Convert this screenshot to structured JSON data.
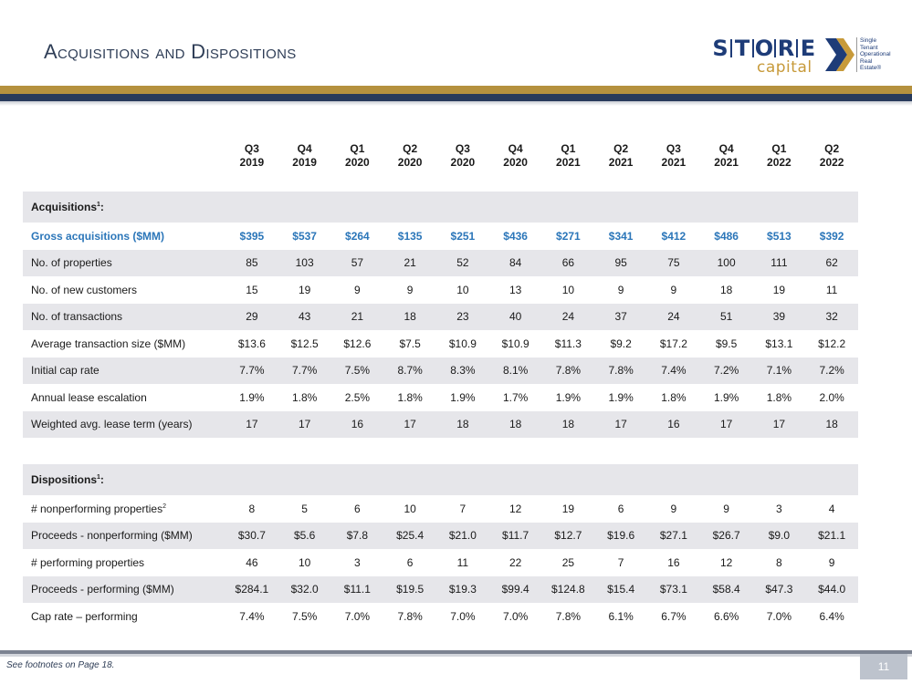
{
  "title": "Acquisitions and Dispositions",
  "logo": {
    "letters": [
      "S",
      "T",
      "O",
      "R",
      "E"
    ],
    "sub": "capital",
    "tagline": [
      "Single",
      "Tenant",
      "Operational",
      "Real",
      "Estate®"
    ]
  },
  "columns": [
    {
      "q": "Q3",
      "y": "2019"
    },
    {
      "q": "Q4",
      "y": "2019"
    },
    {
      "q": "Q1",
      "y": "2020"
    },
    {
      "q": "Q2",
      "y": "2020"
    },
    {
      "q": "Q3",
      "y": "2020"
    },
    {
      "q": "Q4",
      "y": "2020"
    },
    {
      "q": "Q1",
      "y": "2021"
    },
    {
      "q": "Q2",
      "y": "2021"
    },
    {
      "q": "Q3",
      "y": "2021"
    },
    {
      "q": "Q4",
      "y": "2021"
    },
    {
      "q": "Q1",
      "y": "2022"
    },
    {
      "q": "Q2",
      "y": "2022"
    }
  ],
  "acquisitions": {
    "heading": "Acquisitions",
    "heading_sup": "1",
    "rows": [
      {
        "label": "Gross acquisitions ($MM)",
        "values": [
          "$395",
          "$537",
          "$264",
          "$135",
          "$251",
          "$436",
          "$271",
          "$341",
          "$412",
          "$486",
          "$513",
          "$392"
        ]
      },
      {
        "label": "No. of properties",
        "values": [
          "85",
          "103",
          "57",
          "21",
          "52",
          "84",
          "66",
          "95",
          "75",
          "100",
          "111",
          "62"
        ]
      },
      {
        "label": "No. of new customers",
        "values": [
          "15",
          "19",
          "9",
          "9",
          "10",
          "13",
          "10",
          "9",
          "9",
          "18",
          "19",
          "11"
        ]
      },
      {
        "label": "No. of transactions",
        "values": [
          "29",
          "43",
          "21",
          "18",
          "23",
          "40",
          "24",
          "37",
          "24",
          "51",
          "39",
          "32"
        ]
      },
      {
        "label": "Average transaction size ($MM)",
        "values": [
          "$13.6",
          "$12.5",
          "$12.6",
          "$7.5",
          "$10.9",
          "$10.9",
          "$11.3",
          "$9.2",
          "$17.2",
          "$9.5",
          "$13.1",
          "$12.2"
        ]
      },
      {
        "label": "Initial cap rate",
        "values": [
          "7.7%",
          "7.7%",
          "7.5%",
          "8.7%",
          "8.3%",
          "8.1%",
          "7.8%",
          "7.8%",
          "7.4%",
          "7.2%",
          "7.1%",
          "7.2%"
        ]
      },
      {
        "label": "Annual lease escalation",
        "values": [
          "1.9%",
          "1.8%",
          "2.5%",
          "1.8%",
          "1.9%",
          "1.7%",
          "1.9%",
          "1.9%",
          "1.8%",
          "1.9%",
          "1.8%",
          "2.0%"
        ]
      },
      {
        "label": "Weighted avg. lease term (years)",
        "values": [
          "17",
          "17",
          "16",
          "17",
          "18",
          "18",
          "18",
          "17",
          "16",
          "17",
          "17",
          "18"
        ]
      }
    ]
  },
  "dispositions": {
    "heading": "Dispositions",
    "heading_sup": "1",
    "rows": [
      {
        "label": "# nonperforming properties",
        "sup": "2",
        "values": [
          "8",
          "5",
          "6",
          "10",
          "7",
          "12",
          "19",
          "6",
          "9",
          "9",
          "3",
          "4"
        ]
      },
      {
        "label": "Proceeds - nonperforming ($MM)",
        "values": [
          "$30.7",
          "$5.6",
          "$7.8",
          "$25.4",
          "$21.0",
          "$11.7",
          "$12.7",
          "$19.6",
          "$27.1",
          "$26.7",
          "$9.0",
          "$21.1"
        ]
      },
      {
        "label": "# performing properties",
        "values": [
          "46",
          "10",
          "3",
          "6",
          "11",
          "22",
          "25",
          "7",
          "16",
          "12",
          "8",
          "9"
        ]
      },
      {
        "label": "Proceeds - performing ($MM)",
        "values": [
          "$284.1",
          "$32.0",
          "$11.1",
          "$19.5",
          "$19.3",
          "$99.4",
          "$124.8",
          "$15.4",
          "$73.1",
          "$58.4",
          "$47.3",
          "$44.0"
        ]
      },
      {
        "label": "Cap rate – performing",
        "values": [
          "7.4%",
          "7.5%",
          "7.0%",
          "7.8%",
          "7.0%",
          "7.0%",
          "7.8%",
          "6.1%",
          "6.7%",
          "6.6%",
          "7.0%",
          "6.4%"
        ]
      }
    ]
  },
  "footnote": "See footnotes on Page 18.",
  "page_number": "11",
  "colors": {
    "navy": "#283a5b",
    "gold": "#b5913e",
    "accent_blue": "#2b76b9",
    "row_shade": "#e6e6ea"
  }
}
